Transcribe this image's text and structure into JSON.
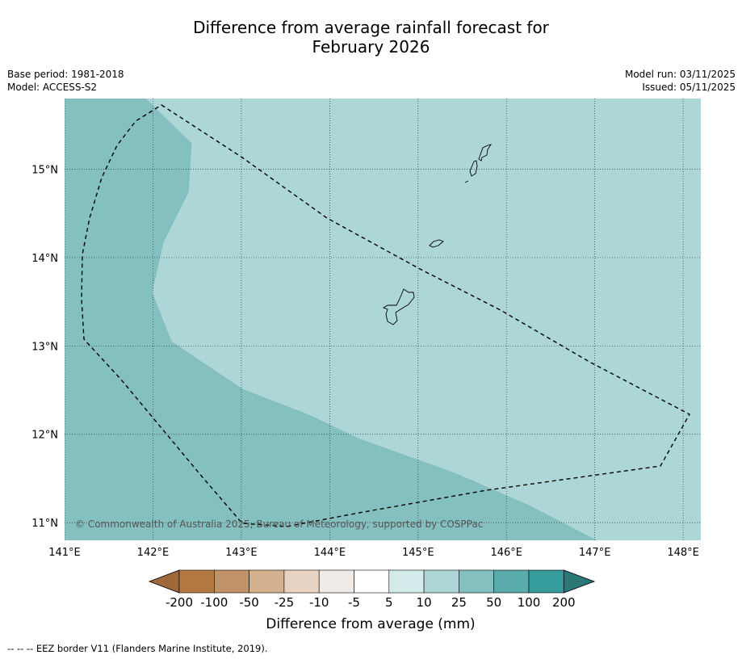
{
  "title": {
    "line1": "Difference from average rainfall forecast for",
    "line2": "February 2026"
  },
  "meta": {
    "base_period": "Base period: 1981-2018",
    "model": "Model: ACCESS-S2",
    "model_run": "Model run: 03/11/2025",
    "issued": "Issued: 05/11/2025"
  },
  "map": {
    "lon_range": [
      141,
      148.2
    ],
    "lat_range": [
      10.8,
      15.8
    ],
    "lon_ticks": [
      {
        "value": 141,
        "label": "141°E"
      },
      {
        "value": 142,
        "label": "142°E"
      },
      {
        "value": 143,
        "label": "143°E"
      },
      {
        "value": 144,
        "label": "144°E"
      },
      {
        "value": 145,
        "label": "145°E"
      },
      {
        "value": 146,
        "label": "146°E"
      },
      {
        "value": 147,
        "label": "147°E"
      },
      {
        "value": 148,
        "label": "148°E"
      }
    ],
    "lat_ticks": [
      {
        "value": 15,
        "label": "15°N"
      },
      {
        "value": 14,
        "label": "14°N"
      },
      {
        "value": 13,
        "label": "13°N"
      },
      {
        "value": 12,
        "label": "12°N"
      },
      {
        "value": 11,
        "label": "11°N"
      }
    ],
    "copyright": "© Commonwealth of Australia 2025, Bureau of Meteorology, supported by COSPPac",
    "zones": [
      {
        "category": "25 to 50 mm",
        "color": "#85c0c0"
      },
      {
        "category": "10 to 25 mm",
        "color": "#add6d6"
      }
    ]
  },
  "colorbar": {
    "labels": [
      "-200",
      "-100",
      "-50",
      "-25",
      "-10",
      "-5",
      "5",
      "10",
      "25",
      "50",
      "100",
      "200"
    ],
    "colors": [
      "#a0673a",
      "#b27a40",
      "#c19268",
      "#d5b190",
      "#e8d3c2",
      "#f0ebe7",
      "#ffffff",
      "#d5eaea",
      "#add6d6",
      "#85c0c0",
      "#5aabab",
      "#369b9b",
      "#2a7777"
    ],
    "label": "Difference from average (mm)"
  },
  "footnote": "--  --  -- EEZ border V11 (Flanders Marine Institute, 2019)."
}
